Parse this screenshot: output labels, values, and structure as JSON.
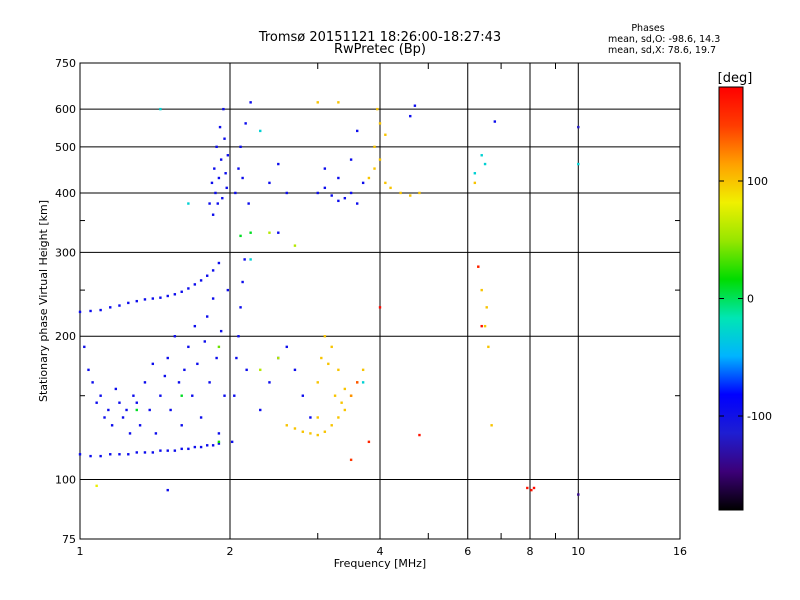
{
  "chart_data": {
    "type": "scatter",
    "title": "Tromsø 20151121 18:26:00-18:27:43",
    "subtitle": "RwPretec (Bp)",
    "xlabel": "Frequency [MHz]",
    "ylabel": "Stationary phase Virtual Height [km]",
    "x_scale": "log",
    "y_scale": "log",
    "xlim": [
      1,
      16
    ],
    "ylim": [
      75,
      750
    ],
    "x_ticks": [
      1,
      2,
      4,
      6,
      8,
      10,
      16
    ],
    "x_tick_labels": [
      "1",
      "2",
      "4",
      "6",
      "8",
      "10",
      "16"
    ],
    "y_ticks": [
      75,
      100,
      200,
      300,
      400,
      500,
      600,
      750
    ],
    "y_tick_labels": [
      "75",
      "100",
      "200",
      "300",
      "400",
      "500",
      "600",
      "750"
    ],
    "grid": true,
    "stats": {
      "heading": "Phases",
      "lines": [
        "mean, sd,O: -98.6, 14.3",
        "mean, sd,X: 78.6, 19.7"
      ]
    },
    "colorbar": {
      "label": "[deg]",
      "range": [
        -180,
        180
      ],
      "ticks": [
        100,
        0,
        -100
      ],
      "tick_labels": [
        "100",
        "0",
        "-100"
      ],
      "colormap": [
        "#000000",
        "#3c0078",
        "#1e1ed2",
        "#0000ff",
        "#00b4ff",
        "#00e6b4",
        "#00dc00",
        "#96e600",
        "#f0f000",
        "#ffa000",
        "#ff3c00",
        "#ff0000"
      ]
    },
    "series": [
      {
        "points": [
          [
            1.0,
            113,
            -95
          ],
          [
            1.05,
            112,
            -95
          ],
          [
            1.1,
            112,
            -95
          ],
          [
            1.15,
            113,
            -95
          ],
          [
            1.2,
            113,
            -95
          ],
          [
            1.25,
            113,
            -95
          ],
          [
            1.3,
            114,
            -95
          ],
          [
            1.35,
            114,
            -95
          ],
          [
            1.4,
            114,
            -95
          ],
          [
            1.45,
            115,
            -95
          ],
          [
            1.5,
            115,
            -95
          ],
          [
            1.55,
            115,
            -95
          ],
          [
            1.6,
            116,
            -95
          ],
          [
            1.65,
            116,
            -95
          ],
          [
            1.7,
            117,
            -95
          ],
          [
            1.75,
            117,
            -95
          ],
          [
            1.8,
            118,
            -95
          ],
          [
            1.85,
            118,
            -95
          ],
          [
            1.9,
            119,
            -95
          ],
          [
            1.0,
            225,
            -95
          ],
          [
            1.05,
            226,
            -95
          ],
          [
            1.1,
            227,
            -95
          ],
          [
            1.15,
            230,
            -95
          ],
          [
            1.2,
            232,
            -95
          ],
          [
            1.25,
            235,
            -95
          ],
          [
            1.3,
            237,
            -95
          ],
          [
            1.35,
            239,
            -95
          ],
          [
            1.4,
            240,
            -95
          ],
          [
            1.45,
            241,
            -95
          ],
          [
            1.5,
            243,
            -95
          ],
          [
            1.55,
            245,
            -95
          ],
          [
            1.6,
            248,
            -95
          ],
          [
            1.65,
            252,
            -95
          ],
          [
            1.7,
            257,
            -95
          ],
          [
            1.75,
            262,
            -95
          ],
          [
            1.8,
            268,
            -95
          ],
          [
            1.85,
            275,
            -95
          ],
          [
            1.9,
            285,
            -95
          ],
          [
            1.02,
            190,
            -100
          ],
          [
            1.04,
            170,
            -95
          ],
          [
            1.06,
            160,
            -95
          ],
          [
            1.08,
            145,
            -95
          ],
          [
            1.1,
            150,
            -95
          ],
          [
            1.12,
            135,
            -95
          ],
          [
            1.14,
            140,
            -95
          ],
          [
            1.16,
            130,
            -95
          ],
          [
            1.18,
            155,
            -95
          ],
          [
            1.2,
            145,
            -95
          ],
          [
            1.22,
            135,
            -95
          ],
          [
            1.24,
            140,
            -95
          ],
          [
            1.26,
            125,
            -95
          ],
          [
            1.28,
            150,
            -95
          ],
          [
            1.3,
            145,
            -95
          ],
          [
            1.32,
            130,
            -95
          ],
          [
            1.35,
            160,
            -95
          ],
          [
            1.38,
            140,
            -95
          ],
          [
            1.4,
            175,
            -95
          ],
          [
            1.42,
            125,
            -95
          ],
          [
            1.45,
            150,
            -95
          ],
          [
            1.48,
            165,
            -95
          ],
          [
            1.5,
            180,
            -95
          ],
          [
            1.52,
            140,
            -95
          ],
          [
            1.55,
            200,
            -95
          ],
          [
            1.58,
            160,
            -95
          ],
          [
            1.6,
            130,
            -95
          ],
          [
            1.62,
            170,
            -95
          ],
          [
            1.65,
            190,
            -95
          ],
          [
            1.68,
            150,
            -95
          ],
          [
            1.7,
            210,
            -95
          ],
          [
            1.72,
            175,
            -95
          ],
          [
            1.75,
            135,
            -95
          ],
          [
            1.78,
            195,
            -95
          ],
          [
            1.8,
            220,
            -95
          ],
          [
            1.82,
            160,
            -95
          ],
          [
            1.85,
            240,
            -95
          ],
          [
            1.88,
            180,
            -95
          ],
          [
            1.9,
            125,
            -95
          ],
          [
            1.92,
            205,
            -95
          ],
          [
            1.95,
            150,
            -95
          ],
          [
            1.98,
            250,
            -95
          ],
          [
            1.82,
            380,
            -95
          ],
          [
            1.84,
            420,
            -95
          ],
          [
            1.85,
            360,
            -95
          ],
          [
            1.86,
            450,
            -95
          ],
          [
            1.87,
            400,
            -95
          ],
          [
            1.88,
            500,
            -95
          ],
          [
            1.89,
            380,
            -95
          ],
          [
            1.9,
            430,
            -95
          ],
          [
            1.91,
            550,
            -95
          ],
          [
            1.92,
            470,
            -95
          ],
          [
            1.93,
            390,
            -95
          ],
          [
            1.94,
            600,
            -95
          ],
          [
            1.95,
            520,
            -95
          ],
          [
            1.96,
            440,
            -95
          ],
          [
            1.97,
            410,
            -95
          ],
          [
            1.98,
            480,
            -95
          ],
          [
            2.02,
            120,
            -95
          ],
          [
            2.04,
            150,
            -95
          ],
          [
            2.06,
            180,
            -95
          ],
          [
            2.08,
            200,
            -95
          ],
          [
            2.1,
            230,
            -95
          ],
          [
            2.12,
            260,
            -95
          ],
          [
            2.14,
            290,
            -95
          ],
          [
            2.16,
            170,
            -95
          ],
          [
            2.05,
            400,
            -95
          ],
          [
            2.08,
            450,
            -95
          ],
          [
            2.1,
            500,
            -95
          ],
          [
            2.12,
            430,
            -95
          ],
          [
            2.15,
            560,
            -95
          ],
          [
            2.18,
            380,
            -95
          ],
          [
            2.2,
            620,
            -95
          ],
          [
            2.3,
            140,
            -95
          ],
          [
            2.4,
            160,
            -95
          ],
          [
            2.5,
            180,
            -95
          ],
          [
            2.6,
            190,
            -95
          ],
          [
            2.7,
            170,
            -95
          ],
          [
            2.8,
            150,
            -95
          ],
          [
            2.9,
            135,
            -95
          ],
          [
            2.4,
            420,
            -95
          ],
          [
            2.5,
            460,
            -95
          ],
          [
            2.6,
            400,
            -95
          ],
          [
            2.5,
            330,
            -95
          ],
          [
            3.0,
            400,
            -95
          ],
          [
            3.1,
            410,
            -95
          ],
          [
            3.2,
            395,
            -95
          ],
          [
            3.3,
            385,
            -95
          ],
          [
            3.4,
            390,
            -95
          ],
          [
            3.5,
            400,
            -95
          ],
          [
            3.6,
            380,
            -95
          ],
          [
            3.3,
            430,
            -95
          ],
          [
            3.1,
            450,
            -95
          ],
          [
            3.5,
            470,
            -95
          ],
          [
            3.6,
            540,
            -95
          ],
          [
            4.7,
            610,
            -95
          ],
          [
            4.6,
            580,
            -95
          ],
          [
            3.7,
            420,
            -95
          ],
          [
            1.5,
            95,
            -95
          ],
          [
            1.08,
            97,
            80
          ],
          [
            1.3,
            140,
            10
          ],
          [
            1.6,
            150,
            10
          ],
          [
            1.9,
            190,
            40
          ],
          [
            2.1,
            325,
            10
          ],
          [
            1.9,
            120,
            20
          ],
          [
            2.2,
            330,
            10
          ]
        ]
      },
      {
        "points": [
          [
            2.6,
            130,
            100
          ],
          [
            2.7,
            128,
            100
          ],
          [
            2.8,
            126,
            100
          ],
          [
            2.9,
            125,
            100
          ],
          [
            3.0,
            124,
            100
          ],
          [
            3.1,
            126,
            100
          ],
          [
            3.2,
            130,
            100
          ],
          [
            3.3,
            135,
            100
          ],
          [
            3.4,
            140,
            100
          ],
          [
            3.5,
            150,
            100
          ],
          [
            3.6,
            160,
            100
          ],
          [
            3.7,
            170,
            100
          ],
          [
            3.0,
            160,
            100
          ],
          [
            3.05,
            180,
            100
          ],
          [
            3.1,
            200,
            100
          ],
          [
            3.15,
            175,
            100
          ],
          [
            3.2,
            190,
            100
          ],
          [
            3.25,
            150,
            100
          ],
          [
            3.3,
            170,
            100
          ],
          [
            3.35,
            145,
            100
          ],
          [
            3.4,
            155,
            100
          ],
          [
            3.0,
            135,
            100
          ],
          [
            3.8,
            430,
            100
          ],
          [
            3.9,
            450,
            100
          ],
          [
            4.0,
            470,
            100
          ],
          [
            4.1,
            420,
            100
          ],
          [
            4.2,
            410,
            100
          ],
          [
            4.4,
            400,
            100
          ],
          [
            4.6,
            395,
            100
          ],
          [
            3.9,
            500,
            100
          ],
          [
            4.0,
            560,
            100
          ],
          [
            3.95,
            600,
            100
          ],
          [
            4.1,
            530,
            100
          ],
          [
            2.3,
            170,
            60
          ],
          [
            2.5,
            180,
            60
          ],
          [
            2.4,
            330,
            60
          ],
          [
            2.7,
            310,
            60
          ],
          [
            6.2,
            420,
            100
          ],
          [
            6.3,
            280,
            100
          ],
          [
            6.4,
            250,
            100
          ],
          [
            6.5,
            210,
            100
          ],
          [
            6.6,
            190,
            100
          ],
          [
            6.55,
            230,
            100
          ],
          [
            6.7,
            130,
            100
          ],
          [
            4.8,
            400,
            100
          ],
          [
            3.5,
            150,
            120
          ],
          [
            3.6,
            160,
            140
          ],
          [
            3.0,
            620,
            100
          ],
          [
            3.3,
            620,
            100
          ]
        ]
      },
      {
        "points": [
          [
            4.0,
            230,
            175
          ],
          [
            4.8,
            124,
            170
          ],
          [
            7.9,
            96,
            170
          ],
          [
            8.05,
            95,
            170
          ],
          [
            8.15,
            96,
            175
          ],
          [
            6.3,
            280,
            165
          ],
          [
            6.4,
            210,
            170
          ],
          [
            3.8,
            120,
            160
          ],
          [
            3.5,
            110,
            150
          ]
        ]
      },
      {
        "points": [
          [
            1.45,
            600,
            -30
          ],
          [
            1.65,
            380,
            -30
          ],
          [
            2.2,
            290,
            -30
          ],
          [
            2.3,
            540,
            -30
          ],
          [
            3.7,
            160,
            -30
          ],
          [
            6.2,
            440,
            -30
          ],
          [
            6.5,
            460,
            -30
          ],
          [
            6.4,
            480,
            -30
          ],
          [
            10.0,
            460,
            -30
          ],
          [
            6.8,
            565,
            -95
          ],
          [
            10.0,
            550,
            -120
          ],
          [
            10.0,
            93,
            -140
          ]
        ]
      }
    ]
  }
}
